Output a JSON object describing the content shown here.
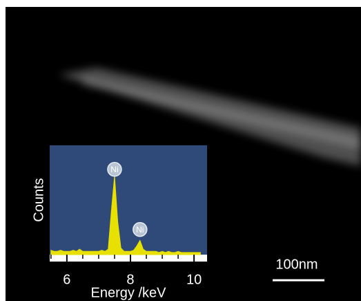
{
  "chart_data": {
    "type": "area",
    "xlabel": "Energy /keV",
    "ylabel": "Counts",
    "x": [
      5.5,
      5.6,
      5.7,
      5.8,
      5.9,
      6.0,
      6.1,
      6.2,
      6.3,
      6.4,
      6.5,
      6.6,
      6.7,
      6.8,
      6.9,
      7.0,
      7.1,
      7.2,
      7.3,
      7.4,
      7.5,
      7.6,
      7.7,
      7.8,
      7.9,
      8.0,
      8.1,
      8.2,
      8.3,
      8.4,
      8.5,
      8.6,
      8.7,
      8.8,
      8.9,
      9.0,
      9.1,
      9.2,
      9.3,
      9.4,
      9.5,
      9.6,
      9.7,
      9.8,
      9.9,
      10.0,
      10.1,
      10.2
    ],
    "values": [
      4,
      3,
      3,
      4,
      3,
      3,
      3,
      4,
      3,
      5,
      3,
      3,
      3,
      3,
      3,
      3,
      4,
      3,
      5,
      40,
      72,
      30,
      6,
      3,
      3,
      3,
      4,
      8,
      13,
      5,
      3,
      3,
      3,
      3,
      2,
      3,
      2,
      3,
      2,
      2,
      3,
      2,
      2,
      2,
      2,
      2,
      2,
      2
    ],
    "color": "#e8e000",
    "xlim": [
      5.46,
      10.41
    ],
    "ylim": [
      0,
      100
    ],
    "xticks": [
      6,
      8,
      10
    ],
    "xminorticks": [
      5.5,
      6.5,
      7,
      7.5,
      8.5,
      9,
      9.5,
      10
    ],
    "annotations": [
      {
        "text": "Ni",
        "x": 7.5,
        "y": 78
      },
      {
        "text": "Ni",
        "x": 8.3,
        "y": 23
      }
    ],
    "scale_bar": "100nm"
  }
}
